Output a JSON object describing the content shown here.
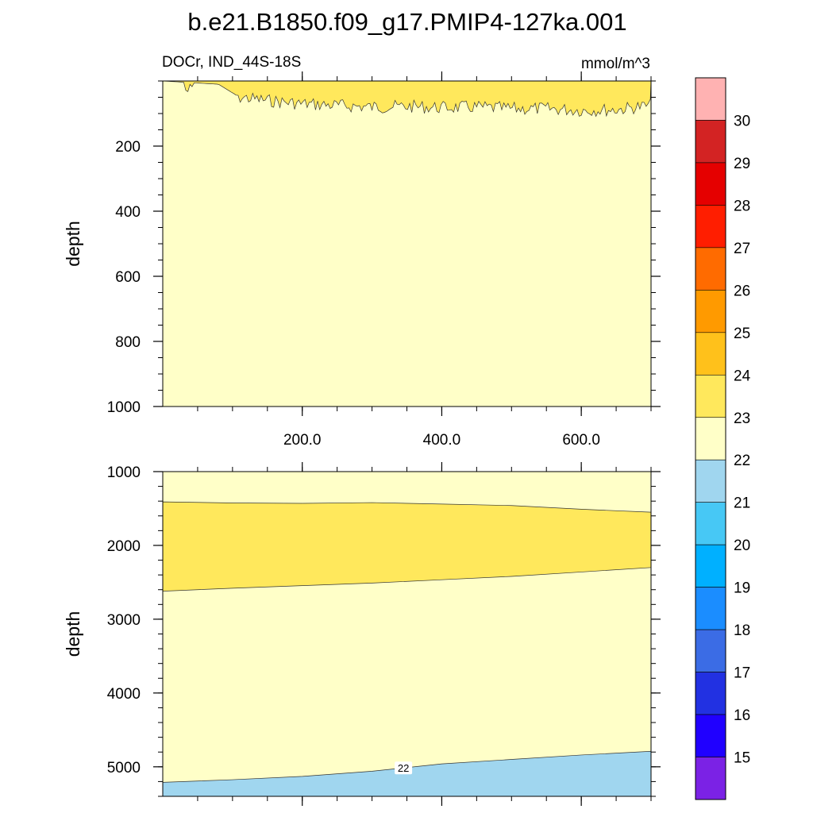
{
  "title": "b.e21.B1850.f09_g17.PMIP4-127ka.001",
  "subtitle_left": "DOCr, IND_44S-18S",
  "subtitle_right": "mmol/m^3",
  "chart_data": {
    "type": "heatmap",
    "title": "b.e21.B1850.f09_g17.PMIP4-127ka.001",
    "variable": "DOCr",
    "region": "IND_44S-18S",
    "units": "mmol/m^3",
    "x_range": [
      0,
      700
    ],
    "x_ticks": [
      200,
      400,
      600
    ],
    "x_tick_labels": [
      "200.0",
      "400.0",
      "600.0"
    ],
    "ylabel": "depth",
    "panels": [
      {
        "name": "upper",
        "ylim": [
          0,
          1000
        ],
        "y_ticks": [
          200,
          400,
          600,
          800,
          1000
        ],
        "y_tick_labels": [
          "200",
          "400",
          "600",
          "800",
          "1000"
        ],
        "background_value": 22.5,
        "contours": [
          {
            "level": 23,
            "fill_above_color": "#ffe85c",
            "description": "noisy thin layer near surface, base depth ~ 40-100",
            "base_depth_points": [
              [
                0,
                0
              ],
              [
                40,
                5
              ],
              [
                80,
                10
              ],
              [
                110,
                50
              ],
              [
                150,
                60
              ],
              [
                200,
                70
              ],
              [
                250,
                75
              ],
              [
                300,
                80
              ],
              [
                350,
                78
              ],
              [
                400,
                82
              ],
              [
                450,
                80
              ],
              [
                500,
                85
              ],
              [
                550,
                85
              ],
              [
                600,
                90
              ],
              [
                650,
                88
              ],
              [
                700,
                75
              ]
            ]
          }
        ]
      },
      {
        "name": "lower",
        "ylim": [
          1000,
          5400
        ],
        "y_ticks": [
          1000,
          2000,
          3000,
          4000,
          5000
        ],
        "y_tick_labels": [
          "1000",
          "2000",
          "3000",
          "4000",
          "5000"
        ],
        "background_value": 22.5,
        "contours": [
          {
            "level": 23,
            "fill_color": "#ffe85c",
            "top_points": [
              [
                0,
                1410
              ],
              [
                100,
                1425
              ],
              [
                200,
                1430
              ],
              [
                300,
                1420
              ],
              [
                400,
                1440
              ],
              [
                500,
                1460
              ],
              [
                600,
                1510
              ],
              [
                700,
                1550
              ]
            ],
            "bottom_points": [
              [
                0,
                2620
              ],
              [
                100,
                2580
              ],
              [
                200,
                2545
              ],
              [
                300,
                2510
              ],
              [
                400,
                2465
              ],
              [
                500,
                2420
              ],
              [
                600,
                2360
              ],
              [
                700,
                2300
              ]
            ]
          },
          {
            "level": 22,
            "label": "22",
            "label_x": 345,
            "fill_below_color": "#a0d6ef",
            "top_points": [
              [
                0,
                5210
              ],
              [
                100,
                5175
              ],
              [
                200,
                5130
              ],
              [
                300,
                5060
              ],
              [
                400,
                4960
              ],
              [
                500,
                4900
              ],
              [
                600,
                4840
              ],
              [
                700,
                4790
              ]
            ]
          }
        ]
      }
    ],
    "colorbar": {
      "labels": [
        "15",
        "16",
        "17",
        "18",
        "19",
        "20",
        "21",
        "22",
        "23",
        "24",
        "25",
        "26",
        "27",
        "28",
        "29",
        "30"
      ],
      "colors": [
        "#a0ffa8",
        "#7b22e5",
        "#2000ff",
        "#2231e2",
        "#3b6ce5",
        "#1b8dff",
        "#00b0ff",
        "#47c8f5",
        "#a0d6ef",
        "#ffffc8",
        "#ffe85c",
        "#ffc11b",
        "#ff9a00",
        "#ff6b00",
        "#ff1e00",
        "#e50000",
        "#d32323",
        "#ffb2b2"
      ]
    },
    "colors": {
      "background": "#ffffc8",
      "layer_23": "#ffe85c",
      "below_22": "#a0d6ef"
    }
  }
}
